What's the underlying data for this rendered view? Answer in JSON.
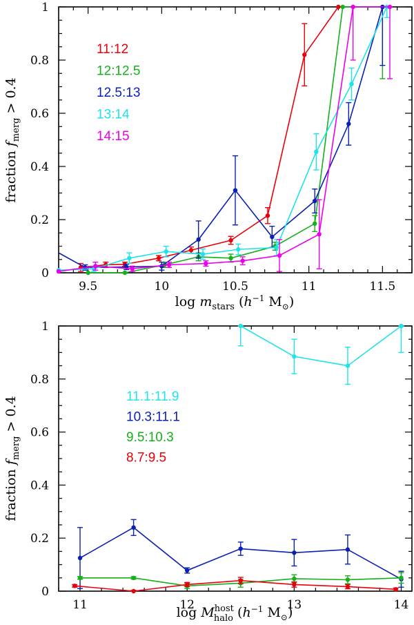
{
  "chart_data": [
    {
      "type": "line",
      "panel": "top",
      "xlabel": "log m_stars (h^-1 M_sun)",
      "ylabel": "fraction f_merg > 0.4",
      "xlim": [
        9.3,
        11.7
      ],
      "ylim": [
        0,
        1
      ],
      "xticks": [
        9.5,
        10,
        10.5,
        11,
        11.5
      ],
      "xtick_labels": [
        "9.5",
        "10",
        "10.5",
        "11",
        "11.5"
      ],
      "yticks": [
        0,
        0.2,
        0.4,
        0.6,
        0.8,
        1
      ],
      "ytick_labels": [
        "0",
        "0.2",
        "0.4",
        "0.6",
        "0.8",
        "1"
      ],
      "legend_position": "top-left",
      "series": [
        {
          "name": "11:12",
          "color": "#e8000b",
          "points": [
            {
              "x": 9.45,
              "y": 0.02,
              "err": 0.015
            },
            {
              "x": 9.62,
              "y": 0.03,
              "err": 0.01
            },
            {
              "x": 9.75,
              "y": 0.032,
              "err": 0.008
            },
            {
              "x": 9.98,
              "y": 0.055,
              "err": 0.01
            },
            {
              "x": 10.2,
              "y": 0.085,
              "err": 0.012
            },
            {
              "x": 10.47,
              "y": 0.122,
              "err": 0.015
            },
            {
              "x": 10.72,
              "y": 0.215,
              "err": 0.03
            },
            {
              "x": 10.97,
              "y": 0.82,
              "err": 0.117
            },
            {
              "x": 11.2,
              "y": 1.0,
              "err": 0.0
            }
          ]
        },
        {
          "name": "12:12.5",
          "color": "#15b01a",
          "points": [
            {
              "x": 9.5,
              "y": 0.0,
              "err": 0.0
            },
            {
              "x": 9.75,
              "y": 0.0,
              "err": 0.0
            },
            {
              "x": 10.02,
              "y": 0.03,
              "err": 0.01
            },
            {
              "x": 10.25,
              "y": 0.06,
              "err": 0.015
            },
            {
              "x": 10.47,
              "y": 0.055,
              "err": 0.015
            },
            {
              "x": 10.77,
              "y": 0.1,
              "err": 0.015
            },
            {
              "x": 11.04,
              "y": 0.185,
              "err": 0.03
            },
            {
              "x": 11.23,
              "y": 1.0,
              "err": 0.0
            },
            {
              "x": 11.5,
              "y": 1.0,
              "err": 0.27
            }
          ]
        },
        {
          "name": "12.5:13",
          "color": "#0a1fb3",
          "points": [
            {
              "x": 9.28,
              "y": 0.075,
              "err": 0.0
            },
            {
              "x": 9.48,
              "y": 0.02,
              "err": 0.01
            },
            {
              "x": 9.76,
              "y": 0.022,
              "err": 0.01
            },
            {
              "x": 10.0,
              "y": 0.025,
              "err": 0.015
            },
            {
              "x": 10.25,
              "y": 0.125,
              "err": 0.07
            },
            {
              "x": 10.5,
              "y": 0.31,
              "err": 0.13
            },
            {
              "x": 10.75,
              "y": 0.135,
              "err": 0.04
            },
            {
              "x": 11.04,
              "y": 0.27,
              "err": 0.045
            },
            {
              "x": 11.27,
              "y": 0.56,
              "err": 0.08
            },
            {
              "x": 11.5,
              "y": 1.0,
              "err": 0.22
            }
          ]
        },
        {
          "name": "13:14",
          "color": "#1ee3ea",
          "points": [
            {
              "x": 9.3,
              "y": 0.01,
              "err": 0.0
            },
            {
              "x": 9.54,
              "y": 0.015,
              "err": 0.01
            },
            {
              "x": 9.78,
              "y": 0.055,
              "err": 0.02
            },
            {
              "x": 10.03,
              "y": 0.08,
              "err": 0.02
            },
            {
              "x": 10.28,
              "y": 0.07,
              "err": 0.02
            },
            {
              "x": 10.52,
              "y": 0.088,
              "err": 0.02
            },
            {
              "x": 10.78,
              "y": 0.095,
              "err": 0.03
            },
            {
              "x": 11.05,
              "y": 0.455,
              "err": 0.068
            },
            {
              "x": 11.29,
              "y": 0.71,
              "err": 0.06
            },
            {
              "x": 11.53,
              "y": 1.0,
              "err": 0.04
            }
          ]
        },
        {
          "name": "14:15",
          "color": "#ec00ec",
          "points": [
            {
              "x": 9.3,
              "y": 0.005,
              "err": 0.0
            },
            {
              "x": 9.55,
              "y": 0.025,
              "err": 0.015
            },
            {
              "x": 9.8,
              "y": 0.015,
              "err": 0.01
            },
            {
              "x": 10.05,
              "y": 0.03,
              "err": 0.01
            },
            {
              "x": 10.3,
              "y": 0.035,
              "err": 0.01
            },
            {
              "x": 10.55,
              "y": 0.045,
              "err": 0.015
            },
            {
              "x": 10.8,
              "y": 0.065,
              "err": 0.06
            },
            {
              "x": 11.07,
              "y": 0.145,
              "err": 0.13
            },
            {
              "x": 11.3,
              "y": 1.0,
              "err": 0.2
            },
            {
              "x": 11.55,
              "y": 1.0,
              "err": 0.27
            }
          ]
        }
      ]
    },
    {
      "type": "line",
      "panel": "bottom",
      "xlabel": "log M_halo^host (h^-1 M_sun)",
      "ylabel": "fraction f_merg > 0.4",
      "xlim": [
        10.8,
        14.1
      ],
      "ylim": [
        0,
        1
      ],
      "xticks": [
        11,
        12,
        13,
        14
      ],
      "xtick_labels": [
        "11",
        "12",
        "13",
        "14"
      ],
      "yticks": [
        0,
        0.2,
        0.4,
        0.6,
        0.8,
        1
      ],
      "ytick_labels": [
        "0",
        "0.2",
        "0.4",
        "0.6",
        "0.8",
        "1"
      ],
      "legend_position": "center-left",
      "series": [
        {
          "name": "11.1:11.9",
          "color": "#1ee3ea",
          "points": [
            {
              "x": 12.5,
              "y": 1.0,
              "err": 0.075
            },
            {
              "x": 13.0,
              "y": 0.885,
              "err": 0.065
            },
            {
              "x": 13.5,
              "y": 0.85,
              "err": 0.07
            },
            {
              "x": 14.0,
              "y": 1.0,
              "err": 0.1
            }
          ]
        },
        {
          "name": "10.3:11.1",
          "color": "#0a1fb3",
          "points": [
            {
              "x": 11.0,
              "y": 0.125,
              "err": 0.115
            },
            {
              "x": 11.5,
              "y": 0.24,
              "err": 0.03
            },
            {
              "x": 12.0,
              "y": 0.078,
              "err": 0.01
            },
            {
              "x": 12.5,
              "y": 0.16,
              "err": 0.025
            },
            {
              "x": 13.0,
              "y": 0.145,
              "err": 0.05
            },
            {
              "x": 13.5,
              "y": 0.157,
              "err": 0.055
            },
            {
              "x": 14.0,
              "y": 0.045,
              "err": 0.03
            }
          ]
        },
        {
          "name": "9.5:10.3",
          "color": "#15b01a",
          "points": [
            {
              "x": 11.0,
              "y": 0.05,
              "err": 0.005
            },
            {
              "x": 11.5,
              "y": 0.05,
              "err": 0.005
            },
            {
              "x": 12.0,
              "y": 0.02,
              "err": 0.01
            },
            {
              "x": 12.5,
              "y": 0.03,
              "err": 0.015
            },
            {
              "x": 13.0,
              "y": 0.047,
              "err": 0.015
            },
            {
              "x": 13.5,
              "y": 0.043,
              "err": 0.015
            },
            {
              "x": 14.0,
              "y": 0.05,
              "err": 0.02
            }
          ]
        },
        {
          "name": "8.7:9.5",
          "color": "#e8000b",
          "points": [
            {
              "x": 10.95,
              "y": 0.02,
              "err": 0.005
            },
            {
              "x": 11.5,
              "y": 0.0,
              "err": 0.003
            },
            {
              "x": 12.0,
              "y": 0.025,
              "err": 0.008
            },
            {
              "x": 12.5,
              "y": 0.04,
              "err": 0.012
            },
            {
              "x": 13.0,
              "y": 0.025,
              "err": 0.01
            },
            {
              "x": 13.5,
              "y": 0.017,
              "err": 0.008
            },
            {
              "x": 13.95,
              "y": 0.007,
              "err": 0.005
            }
          ]
        }
      ]
    }
  ]
}
